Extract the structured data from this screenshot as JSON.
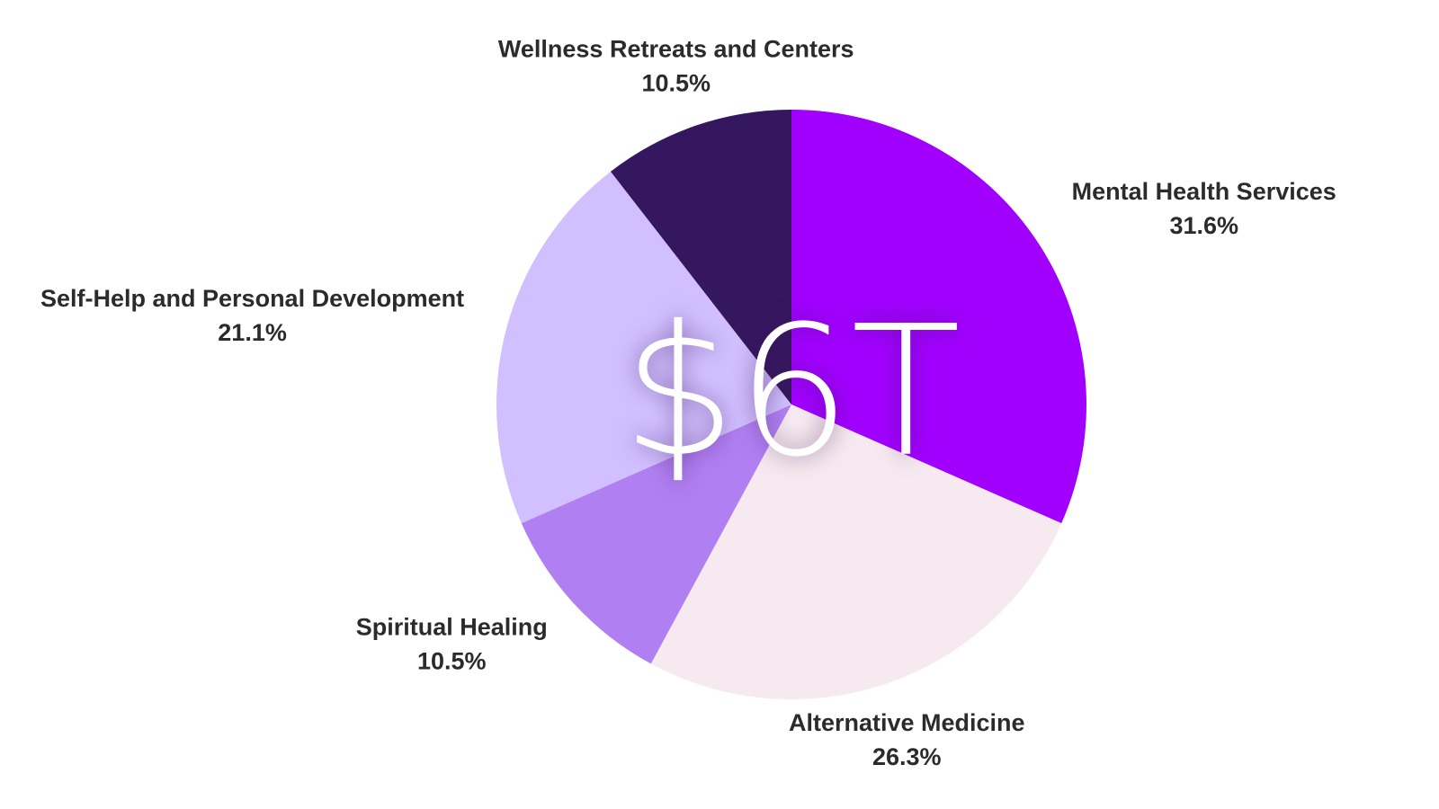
{
  "chart_data": {
    "type": "pie",
    "categories": [
      "Mental Health Services",
      "Alternative Medicine",
      "Spiritual Healing",
      "Self-Help and Personal Development",
      "Wellness Retreats and Centers"
    ],
    "values": [
      31.6,
      26.3,
      10.5,
      21.1,
      10.5
    ],
    "value_labels": [
      "31.6%",
      "26.3%",
      "10.5%",
      "21.1%",
      "10.5%"
    ],
    "colors": [
      "#a100ff",
      "#f6e9ef",
      "#b07ff2",
      "#d1bfff",
      "#35175f"
    ],
    "center_label": "$6T"
  }
}
